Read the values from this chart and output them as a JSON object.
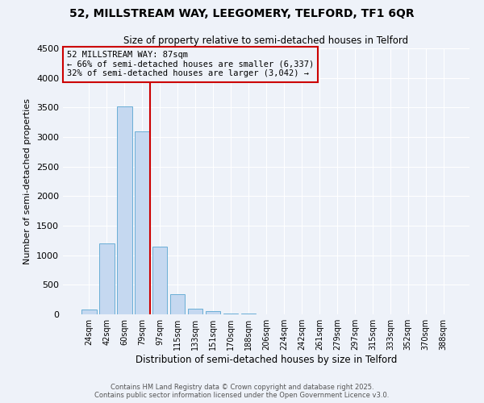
{
  "title": "52, MILLSTREAM WAY, LEEGOMERY, TELFORD, TF1 6QR",
  "subtitle": "Size of property relative to semi-detached houses in Telford",
  "xlabel": "Distribution of semi-detached houses by size in Telford",
  "ylabel": "Number of semi-detached properties",
  "bar_labels": [
    "24sqm",
    "42sqm",
    "60sqm",
    "79sqm",
    "97sqm",
    "115sqm",
    "133sqm",
    "151sqm",
    "170sqm",
    "188sqm",
    "206sqm",
    "224sqm",
    "242sqm",
    "261sqm",
    "279sqm",
    "297sqm",
    "315sqm",
    "333sqm",
    "352sqm",
    "370sqm",
    "388sqm"
  ],
  "bar_values": [
    80,
    1200,
    3520,
    3100,
    1150,
    340,
    100,
    55,
    20,
    8,
    3,
    1,
    0,
    0,
    0,
    0,
    0,
    0,
    0,
    0,
    0
  ],
  "bar_color": "#c5d8f0",
  "bar_edge_color": "#6aaed6",
  "vline_color": "#cc0000",
  "ylim": [
    0,
    4500
  ],
  "yticks": [
    0,
    500,
    1000,
    1500,
    2000,
    2500,
    3000,
    3500,
    4000,
    4500
  ],
  "annotation_title": "52 MILLSTREAM WAY: 87sqm",
  "annotation_line1": "← 66% of semi-detached houses are smaller (6,337)",
  "annotation_line2": "32% of semi-detached houses are larger (3,042) →",
  "annotation_box_color": "#cc0000",
  "footer_line1": "Contains HM Land Registry data © Crown copyright and database right 2025.",
  "footer_line2": "Contains public sector information licensed under the Open Government Licence v3.0.",
  "background_color": "#eef2f9",
  "grid_color": "#ffffff",
  "figsize": [
    6.0,
    5.0
  ],
  "dpi": 100
}
